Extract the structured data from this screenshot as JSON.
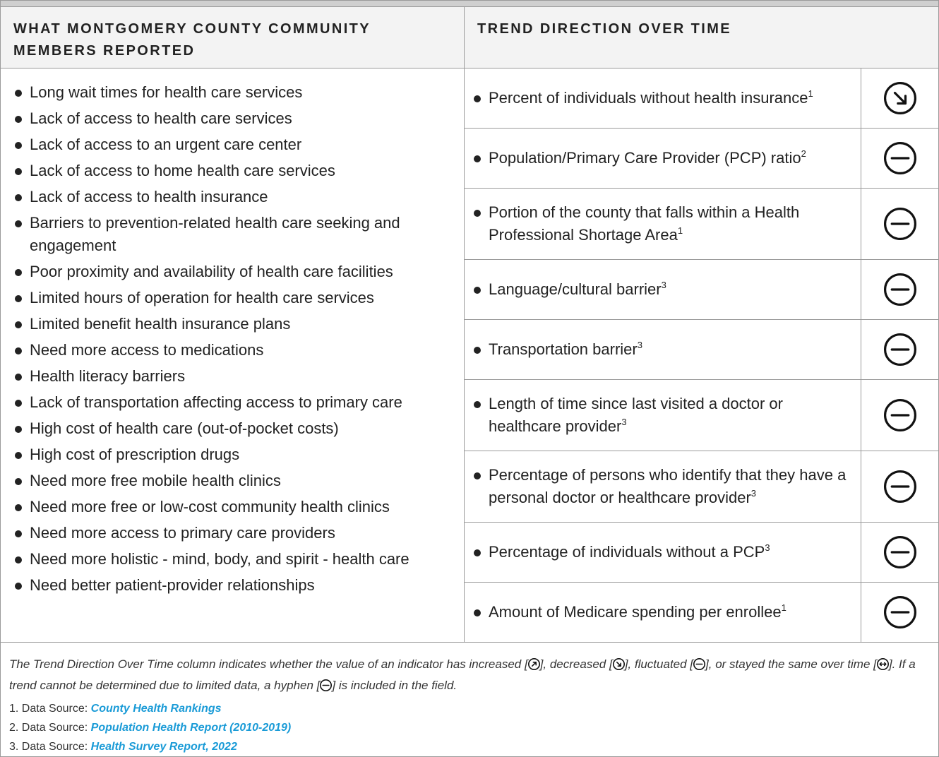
{
  "header": {
    "left": "WHAT MONTGOMERY COUNTY COMMUNITY MEMBERS REPORTED",
    "right": "TREND DIRECTION OVER TIME"
  },
  "reported": [
    "Long wait times for health care services",
    "Lack of access to health care services",
    "Lack of access to an urgent care center",
    "Lack of access to home health care services",
    "Lack of access to health insurance",
    "Barriers to prevention-related health care seeking and engagement",
    "Poor proximity and availability of health care facilities",
    "Limited hours of operation for health care services",
    "Limited benefit health insurance plans",
    "Need more access to medications",
    "Health literacy barriers",
    "Lack of transportation affecting access to primary care",
    "High cost of health care (out-of-pocket costs)",
    "High cost of prescription drugs",
    "Need more free mobile health clinics",
    "Need more free or low-cost community health clinics",
    "Need more access to primary care providers",
    "Need more holistic - mind, body, and spirit - health care",
    "Need better patient-provider relationships"
  ],
  "indicators": [
    {
      "text": "Percent of individuals without health insurance",
      "sup": "1"
    },
    {
      "text": "Population/Primary Care Provider (PCP) ratio",
      "sup": "2"
    },
    {
      "text": "Portion of the county that falls within a Health Professional Shortage Area",
      "sup": "1"
    },
    {
      "text": "Language/cultural barrier",
      "sup": "3"
    },
    {
      "text": "Transportation barrier",
      "sup": "3"
    },
    {
      "text": "Length of time since last visited a doctor or healthcare provider",
      "sup": "3"
    },
    {
      "text": "Percentage of persons who identify that they have a personal doctor or healthcare provider",
      "sup": "3"
    },
    {
      "text": "Percentage of individuals without a PCP",
      "sup": "3"
    },
    {
      "text": "Amount of Medicare spending per enrollee",
      "sup": "1"
    }
  ],
  "note": [
    "The Trend Direction Over Time column indicates whether the value of an indicator has increased [",
    "], decreased [",
    "], fluctuated [",
    "], or stayed the same over time [",
    "]. If a trend cannot be determined due to limited data, a hyphen [",
    "] is included in the field."
  ],
  "sources": [
    {
      "number": "1.",
      "label": "Data Source:",
      "name": "County Health Rankings"
    },
    {
      "number": "2.",
      "label": "Data Source:",
      "name": "Population Health Report (2010-2019)"
    },
    {
      "number": "3.",
      "label": "Data Source:",
      "name": "Health Survey Report, 2022"
    }
  ]
}
